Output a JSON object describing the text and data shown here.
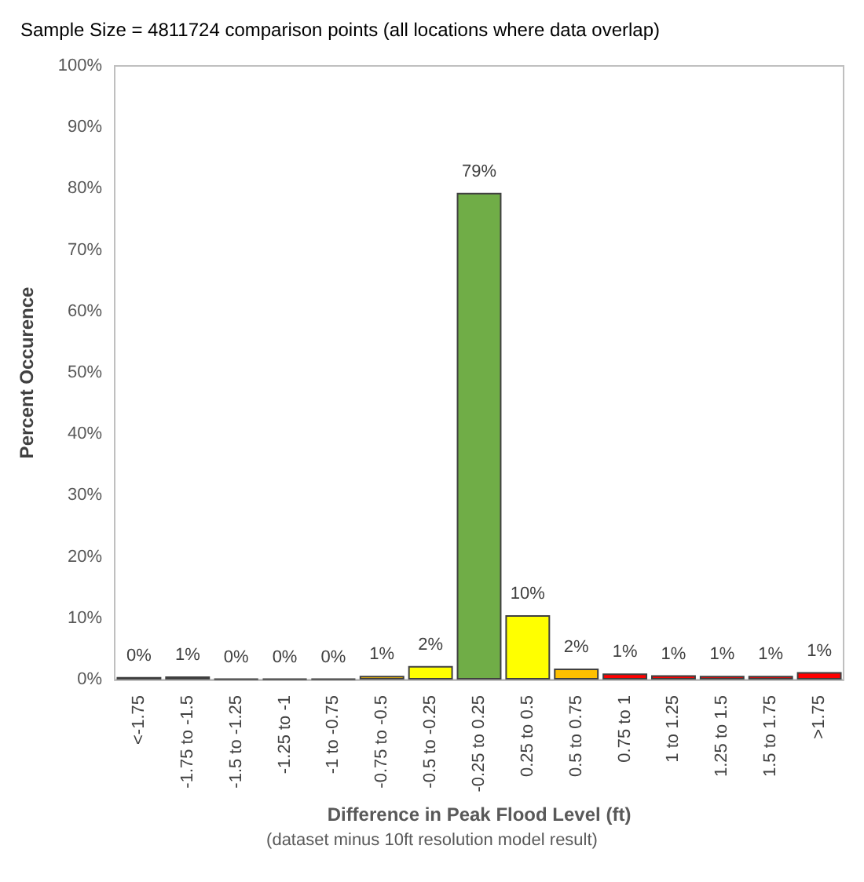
{
  "chart_data": {
    "type": "bar",
    "title": "Sample Size = 4811724 comparison points (all locations where data overlap)",
    "xlabel": "Difference in Peak Flood Level (ft)",
    "ylabel": "Percent Occurence",
    "annotations": [
      "(dataset minus 10ft resolution model result)"
    ],
    "categories": [
      "<-1.75",
      "-1.75 to -1.5",
      "-1.5 to -1.25",
      "-1.25 to -1",
      "-1 to -0.75",
      "-0.75 to -0.5",
      "-0.5 to -0.25",
      "-0.25 to 0.25",
      "0.25 to 0.5",
      "0.5 to 0.75",
      "0.75 to 1",
      "1 to 1.25",
      "1.25 to 1.5",
      "1.5 to 1.75",
      ">1.75"
    ],
    "values": [
      0.4,
      0.5,
      0.1,
      0.1,
      0.1,
      0.6,
      2.2,
      79.3,
      10.5,
      1.8,
      1.0,
      0.7,
      0.6,
      0.6,
      1.2
    ],
    "colors": [
      "#ff0000",
      "#ff0000",
      "#404040",
      "#404040",
      "#404040",
      "#ffc000",
      "#ffff00",
      "#70ad47",
      "#ffff00",
      "#ffc000",
      "#ff0000",
      "#ff0000",
      "#ff0000",
      "#ff0000",
      "#ff0000"
    ],
    "value_labels": [
      "0%",
      "1%",
      "0%",
      "0%",
      "0%",
      "1%",
      "2%",
      "79%",
      "10%",
      "2%",
      "1%",
      "1%",
      "1%",
      "1%",
      "1%"
    ],
    "ylim": [
      0,
      100
    ],
    "yticks": [
      {
        "value": 0,
        "label": "0%"
      },
      {
        "value": 10,
        "label": "10%"
      },
      {
        "value": 20,
        "label": "20%"
      },
      {
        "value": 30,
        "label": "30%"
      },
      {
        "value": 40,
        "label": "40%"
      },
      {
        "value": 50,
        "label": "50%"
      },
      {
        "value": 60,
        "label": "60%"
      },
      {
        "value": 70,
        "label": "70%"
      },
      {
        "value": 80,
        "label": "80%"
      },
      {
        "value": 90,
        "label": "90%"
      },
      {
        "value": 100,
        "label": "100%"
      }
    ],
    "grid": false
  }
}
